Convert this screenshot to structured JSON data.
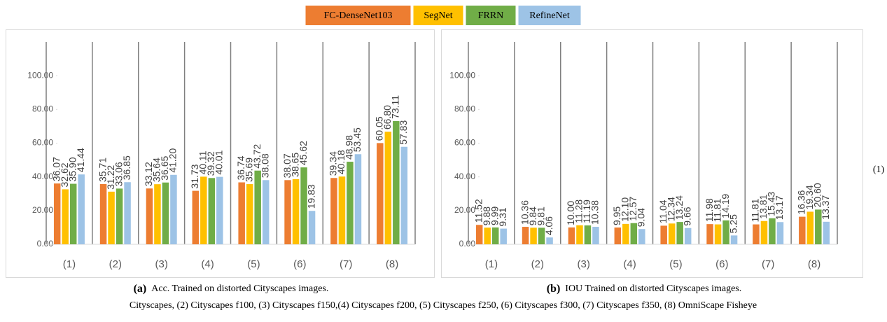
{
  "legend_position": "top",
  "chart_data": [
    {
      "type": "bar",
      "caption_label": "(a)",
      "caption_text": "Acc. Trained on distorted Cityscapes images.",
      "categories": [
        "(1)",
        "(2)",
        "(3)",
        "(4)",
        "(5)",
        "(6)",
        "(7)",
        "(8)"
      ],
      "series": [
        {
          "name": "FC-DenseNet103",
          "color": "#ed7d31",
          "values": [
            36.07,
            35.71,
            33.12,
            31.73,
            36.74,
            38.07,
            39.34,
            60.05
          ],
          "value_labels": [
            "36.07",
            "35.71",
            "33.12",
            "31.73",
            "36.74",
            "38.07",
            "39.34",
            "60.05"
          ]
        },
        {
          "name": "SegNet",
          "color": "#ffc000",
          "values": [
            32.62,
            31.22,
            35.64,
            40.11,
            35.69,
            38.65,
            40.18,
            66.8
          ],
          "value_labels": [
            "32.62",
            "31.22",
            "35.64",
            "40.11",
            "35.69",
            "38.65",
            "40.18",
            "66.80"
          ]
        },
        {
          "name": "FRRN",
          "color": "#70ad47",
          "values": [
            35.9,
            33.06,
            36.65,
            39.32,
            43.72,
            45.62,
            48.98,
            73.11
          ],
          "value_labels": [
            "35.90",
            "33.06",
            "36.65",
            "39.32",
            "43.72",
            "45.62",
            "48.98",
            "73.11"
          ]
        },
        {
          "name": "RefineNet",
          "color": "#9dc3e6",
          "values": [
            41.44,
            36.85,
            41.2,
            40.01,
            38.08,
            19.83,
            53.45,
            57.83
          ],
          "value_labels": [
            "41.44",
            "36.85",
            "41.20",
            "40.01",
            "38.08",
            "19.83",
            "53.45",
            "57.83"
          ]
        }
      ],
      "ylim": [
        0,
        120
      ],
      "yticks": [
        {
          "value": 0,
          "label": "0.00"
        },
        {
          "value": 20,
          "label": "20.00"
        },
        {
          "value": 40,
          "label": "40.00"
        },
        {
          "value": 60,
          "label": "60.00"
        },
        {
          "value": 80,
          "label": "80.00"
        },
        {
          "value": 100,
          "label": "100.00"
        }
      ]
    },
    {
      "type": "bar",
      "caption_label": "(b)",
      "caption_text": "IOU Trained on distorted Cityscapes images.",
      "categories": [
        "(1)",
        "(2)",
        "(3)",
        "(4)",
        "(5)",
        "(6)",
        "(7)",
        "(8)"
      ],
      "series": [
        {
          "color": "#ed7d31",
          "values": [
            11.52,
            10.36,
            10.0,
            9.95,
            11.04,
            11.98,
            11.81,
            16.36
          ],
          "value_labels": [
            "11.52",
            "10.36",
            "10.00",
            "9.95",
            "11.04",
            "11.98",
            "11.81",
            "16.36"
          ]
        },
        {
          "color": "#ffc000",
          "values": [
            9.88,
            9.84,
            11.28,
            12.1,
            12.34,
            11.81,
            13.81,
            19.34
          ],
          "value_labels": [
            "9.88",
            "9.84",
            "11.28",
            "12.10",
            "12.34",
            "11.81",
            "13.81",
            "19.34"
          ]
        },
        {
          "color": "#70ad47",
          "values": [
            9.99,
            9.81,
            11.19,
            12.57,
            13.24,
            14.19,
            15.43,
            20.6
          ],
          "value_labels": [
            "9.99",
            "9.81",
            "11.19",
            "12.57",
            "13.24",
            "14.19",
            "15.43",
            "20.60"
          ]
        },
        {
          "color": "#9dc3e6",
          "values": [
            9.31,
            4.06,
            10.38,
            9.04,
            9.66,
            5.25,
            13.17,
            13.37
          ],
          "value_labels": [
            "9.31",
            "4.06",
            "10.38",
            "9.04",
            "9.66",
            "5.25",
            "13.17",
            "13.37"
          ]
        }
      ],
      "ylim": [
        0,
        120
      ],
      "yticks": [
        {
          "value": 0,
          "label": "0.00"
        },
        {
          "value": 20,
          "label": "20.00"
        },
        {
          "value": 40,
          "label": "40.00"
        },
        {
          "value": 60,
          "label": "60.00"
        },
        {
          "value": 80,
          "label": "80.00"
        },
        {
          "value": 100,
          "label": "100.00"
        }
      ]
    }
  ],
  "equation_number": "(1)",
  "footnote": "Cityscapes, (2) Cityscapes f100, (3) Cityscapes f150,(4) Cityscapes f200, (5) Cityscapes f250, (6) Cityscapes f300, (7) Cityscapes f350, (8) OmniScape Fisheye"
}
